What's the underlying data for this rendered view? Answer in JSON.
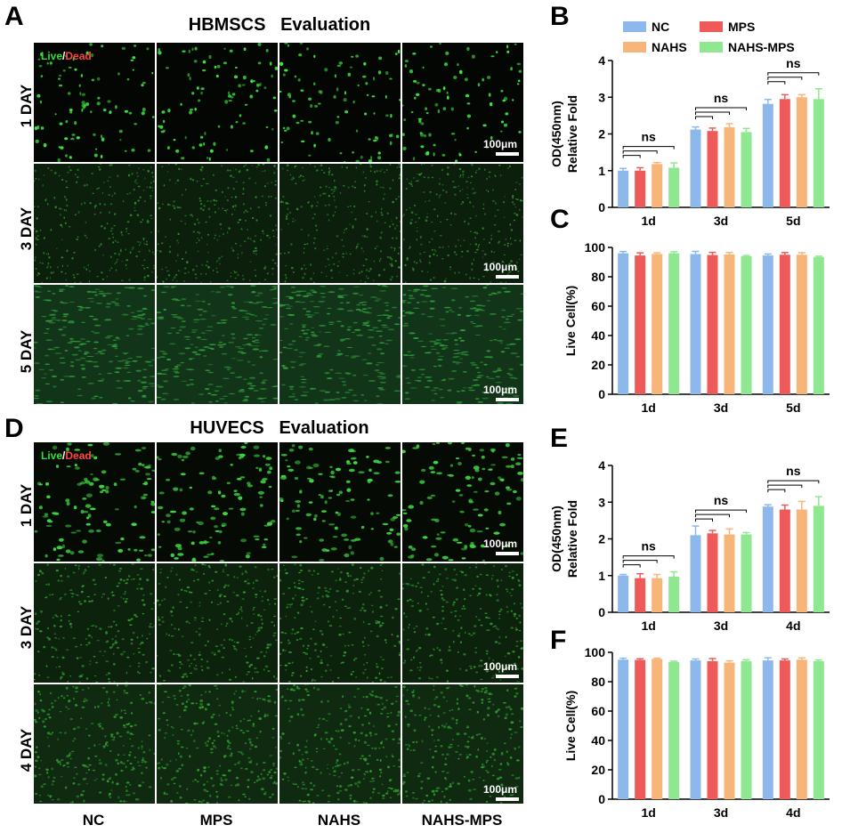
{
  "panels": {
    "A": "A",
    "B": "B",
    "C": "C",
    "D": "D",
    "E": "E",
    "F": "F"
  },
  "micro": {
    "top_title": "HBMSCS   Evaluation",
    "bottom_title": "HUVECS   Evaluation",
    "live_label": "Live",
    "slash": "/",
    "dead_label": "Dead",
    "scale_label": "100μm",
    "top_rows": [
      "1 DAY",
      "3 DAY",
      "5 DAY"
    ],
    "bottom_rows": [
      "1 DAY",
      "3 DAY",
      "4 DAY"
    ],
    "columns": [
      "NC",
      "MPS",
      "NAHS",
      "NAHS-MPS"
    ]
  },
  "legend": {
    "items": [
      {
        "name": "NC",
        "color": "#8db8ec"
      },
      {
        "name": "MPS",
        "color": "#ee5a5a"
      },
      {
        "name": "NAHS",
        "color": "#f7b57a"
      },
      {
        "name": "NAHS-MPS",
        "color": "#8fe88f"
      }
    ]
  },
  "chart_data": [
    {
      "panel": "B",
      "type": "bar",
      "categories": [
        "1d",
        "3d",
        "5d"
      ],
      "ylabel": "OD(450nm)\nRelative Fold",
      "ylim": [
        0,
        4
      ],
      "yticks": [
        0,
        1,
        2,
        3,
        4
      ],
      "series": [
        {
          "name": "NC",
          "values": [
            1.0,
            2.12,
            2.82
          ],
          "errors": [
            0.06,
            0.07,
            0.12
          ]
        },
        {
          "name": "MPS",
          "values": [
            1.0,
            2.08,
            2.95
          ],
          "errors": [
            0.08,
            0.08,
            0.12
          ]
        },
        {
          "name": "NAHS",
          "values": [
            1.18,
            2.18,
            3.0
          ],
          "errors": [
            0.04,
            0.1,
            0.07
          ]
        },
        {
          "name": "NAHS-MPS",
          "values": [
            1.08,
            2.05,
            2.95
          ],
          "errors": [
            0.13,
            0.1,
            0.28
          ]
        }
      ],
      "annotations": [
        "ns",
        "ns",
        "ns"
      ]
    },
    {
      "panel": "C",
      "type": "bar",
      "categories": [
        "1d",
        "3d",
        "5d"
      ],
      "ylabel": "Live Cell(%)",
      "ylim": [
        0,
        100
      ],
      "yticks": [
        0,
        20,
        40,
        60,
        80,
        100
      ],
      "series": [
        {
          "name": "NC",
          "values": [
            96,
            95.5,
            94.5
          ],
          "errors": [
            1.2,
            1.8,
            1.0
          ]
        },
        {
          "name": "MPS",
          "values": [
            94.5,
            94.8,
            95
          ],
          "errors": [
            1.8,
            1.8,
            1.5
          ]
        },
        {
          "name": "NAHS",
          "values": [
            95.5,
            95.2,
            95
          ],
          "errors": [
            0.8,
            1.3,
            1.4
          ]
        },
        {
          "name": "NAHS-MPS",
          "values": [
            96,
            94,
            93.5
          ],
          "errors": [
            1.0,
            0.5,
            0.5
          ]
        }
      ]
    },
    {
      "panel": "E",
      "type": "bar",
      "categories": [
        "1d",
        "3d",
        "4d"
      ],
      "ylabel": "OD(450nm)\nRelative Fold",
      "ylim": [
        0,
        4
      ],
      "yticks": [
        0,
        1,
        2,
        3,
        4
      ],
      "series": [
        {
          "name": "NC",
          "values": [
            1.0,
            2.1,
            2.88
          ],
          "errors": [
            0.03,
            0.25,
            0.05
          ]
        },
        {
          "name": "MPS",
          "values": [
            0.93,
            2.15,
            2.8
          ],
          "errors": [
            0.12,
            0.08,
            0.12
          ]
        },
        {
          "name": "NAHS",
          "values": [
            0.93,
            2.12,
            2.8
          ],
          "errors": [
            0.1,
            0.15,
            0.22
          ]
        },
        {
          "name": "NAHS-MPS",
          "values": [
            0.97,
            2.12,
            2.9
          ],
          "errors": [
            0.13,
            0.05,
            0.25
          ]
        }
      ],
      "annotations": [
        "ns",
        "ns",
        "ns"
      ]
    },
    {
      "panel": "F",
      "type": "bar",
      "categories": [
        "1d",
        "3d",
        "4d"
      ],
      "ylabel": "Live Cell(%)",
      "ylim": [
        0,
        100
      ],
      "yticks": [
        0,
        20,
        40,
        60,
        80,
        100
      ],
      "series": [
        {
          "name": "NC",
          "values": [
            95,
            94.5,
            94.5
          ],
          "errors": [
            1.0,
            1.0,
            1.8
          ]
        },
        {
          "name": "MPS",
          "values": [
            94.8,
            94,
            94.5
          ],
          "errors": [
            0.8,
            1.8,
            1.0
          ]
        },
        {
          "name": "NAHS",
          "values": [
            95.5,
            93,
            95
          ],
          "errors": [
            0.5,
            1.2,
            1.2
          ]
        },
        {
          "name": "NAHS-MPS",
          "values": [
            93.5,
            94,
            94
          ],
          "errors": [
            0.5,
            1.0,
            0.8
          ]
        }
      ]
    }
  ]
}
